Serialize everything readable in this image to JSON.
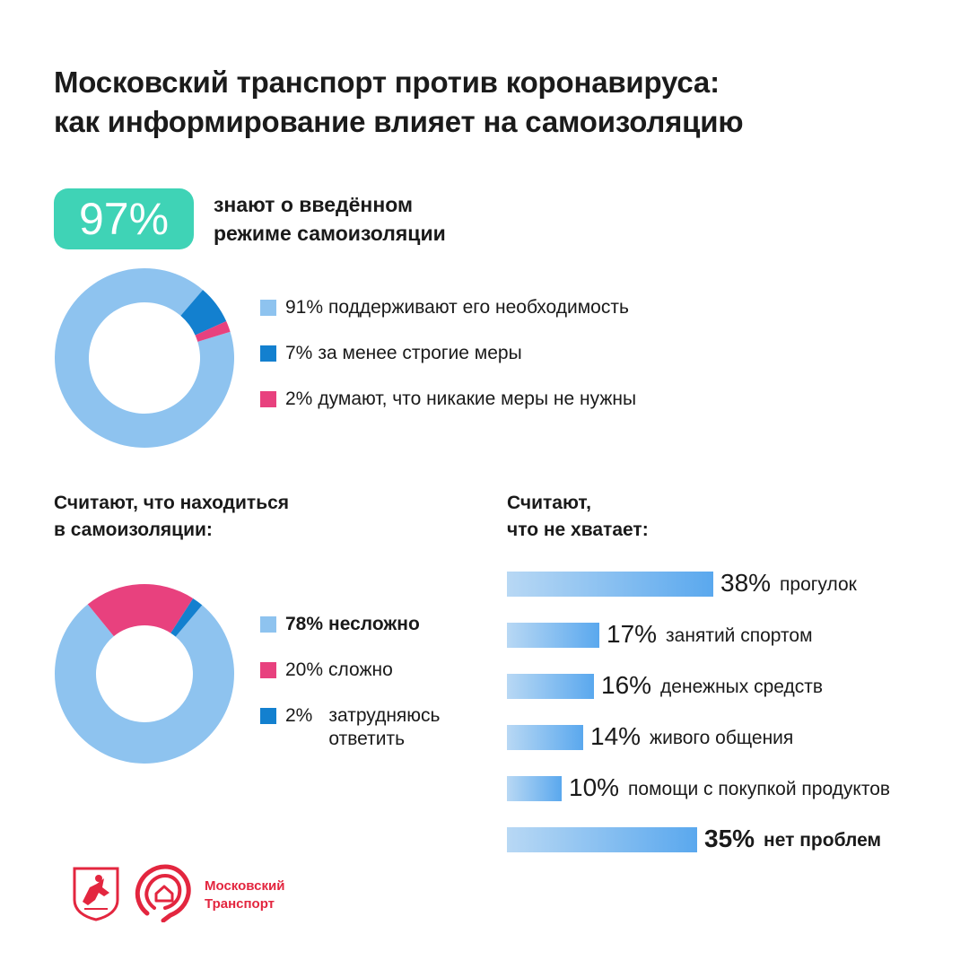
{
  "title": {
    "line1": "Московский транспорт против коронавируса:",
    "line2": "как информирование влияет на самоизоляцию"
  },
  "badge": {
    "value": "97%",
    "text_line1": "знают о введённом",
    "text_line2": "режиме самоизоляции"
  },
  "section2": {
    "heading_line1": "Считают, что находиться",
    "heading_line2": "в самоизоляции:"
  },
  "section3": {
    "heading_line1": "Считают,",
    "heading_line2": "что не хватает:"
  },
  "brand": {
    "line1": "Московский",
    "line2": "Транспорт",
    "color": "#e3263f"
  },
  "colors": {
    "light_blue": "#8ec3ef",
    "dark_blue": "#1380cf",
    "pink": "#e8417e",
    "teal": "#3fd3b6"
  },
  "chart_data": [
    {
      "type": "pie",
      "donut": true,
      "slices": [
        {
          "value": 91,
          "pct": "91%",
          "label": "поддерживают его необходимость",
          "color": "#8ec3ef"
        },
        {
          "value": 7,
          "pct": "7%",
          "label": "за менее строгие меры",
          "color": "#1380cf"
        },
        {
          "value": 2,
          "pct": "2%",
          "label": "думают, что никакие меры не нужны",
          "color": "#e8417e"
        }
      ],
      "legend": "right"
    },
    {
      "type": "pie",
      "donut": true,
      "slices": [
        {
          "value": 78,
          "pct": "78%",
          "label": "несложно",
          "color": "#8ec3ef"
        },
        {
          "value": 20,
          "pct": "20%",
          "label": "сложно",
          "color": "#e8417e"
        },
        {
          "value": 2,
          "pct": "2%",
          "label": "затрудняюсь ответить",
          "color": "#1380cf"
        }
      ],
      "legend": "right"
    },
    {
      "type": "bar",
      "orientation": "horizontal",
      "categories": [
        "прогулок",
        "занятий спортом",
        "денежных средств",
        "живого общения",
        "помощи с покупкой продуктов",
        "нет проблем"
      ],
      "values": [
        38,
        17,
        16,
        14,
        10,
        35
      ],
      "value_labels": [
        "38%",
        "17%",
        "16%",
        "14%",
        "10%",
        "35%"
      ]
    }
  ]
}
